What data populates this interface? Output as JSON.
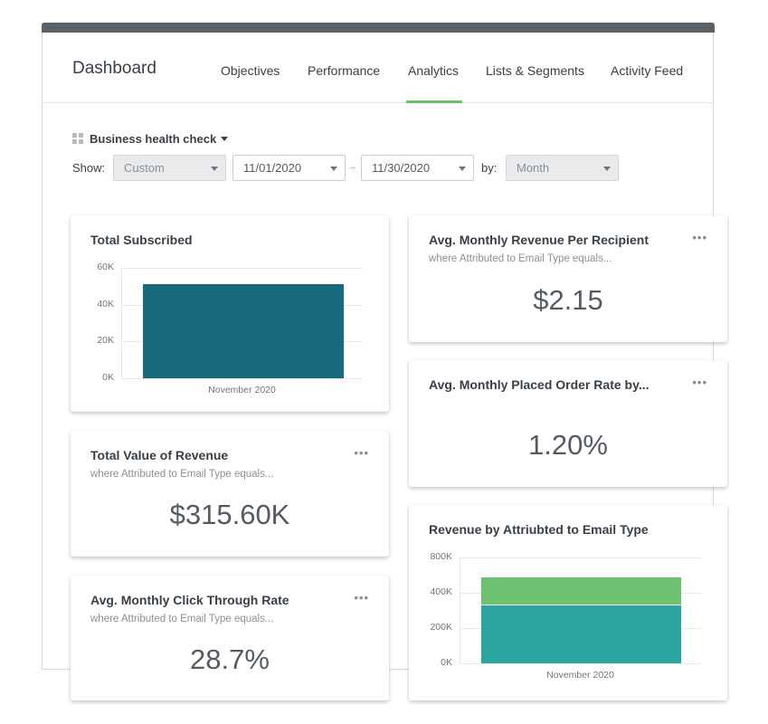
{
  "header": {
    "title": "Dashboard",
    "tabs": [
      "Objectives",
      "Performance",
      "Analytics",
      "Lists & Segments",
      "Activity Feed"
    ],
    "active_tab": "Analytics"
  },
  "filters": {
    "report_name": "Business health check",
    "show_label": "Show:",
    "range": "Custom",
    "start_date": "11/01/2020",
    "end_date": "11/30/2020",
    "by_label": "by:",
    "interval": "Month"
  },
  "cards": {
    "total_subscribed": {
      "title": "Total Subscribed"
    },
    "avg_rev_per_recipient": {
      "title": "Avg. Monthly Revenue Per Recipient",
      "subtitle": "where Attributed to Email Type equals...",
      "value": "$2.15"
    },
    "total_revenue": {
      "title": "Total Value of Revenue",
      "subtitle": "where Attributed to Email Type equals...",
      "value": "$315.60K"
    },
    "placed_order_rate": {
      "title": "Avg. Monthly Placed Order Rate by...",
      "value": "1.20%"
    },
    "click_through": {
      "title": "Avg. Monthly Click Through Rate",
      "subtitle": "where Attributed to Email Type equals...",
      "value": "28.7%"
    },
    "revenue_by_type": {
      "title": "Revenue by Attriubted to Email Type"
    },
    "menu_glyph": "•••"
  },
  "colors": {
    "accent_green": "#6cc070",
    "teal_dark": "#176b7d",
    "teal": "#2aa59e",
    "green": "#6cc070"
  },
  "chart_data": [
    {
      "type": "bar",
      "title": "Total Subscribed",
      "categories": [
        "November 2020"
      ],
      "series": [
        {
          "values": [
            51000
          ]
        }
      ],
      "ylim": [
        0,
        60000
      ],
      "yticks": [
        "60K",
        "40K",
        "20K",
        "0K"
      ],
      "grid": true
    },
    {
      "type": "bar",
      "stacked": true,
      "title": "Revenue by Attriubted to Email Type",
      "categories": [
        "November 2020"
      ],
      "series": [
        {
          "values": [
            330000
          ],
          "color": "#2aa59e"
        },
        {
          "values": [
            240000
          ],
          "color": "#6cc070"
        }
      ],
      "ylim": [
        0,
        800000
      ],
      "yticks": [
        "800K",
        "400K",
        "200K",
        "0K"
      ],
      "grid": true
    }
  ]
}
